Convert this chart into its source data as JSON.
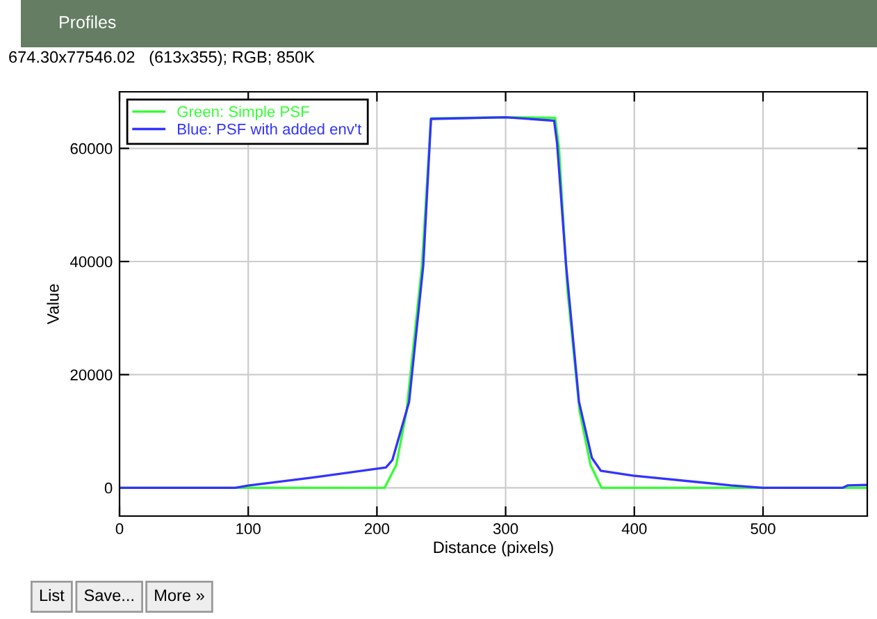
{
  "chart_data": {
    "type": "line",
    "title": "Profiles",
    "subtitle": "674.30x77546.02   (613x355); RGB; 850K",
    "xlabel": "Distance (pixels)",
    "ylabel": "Value",
    "xlim": [
      0,
      581
    ],
    "xticks": [
      0,
      100,
      200,
      300,
      400,
      500
    ],
    "ylim": [
      -5000,
      70000
    ],
    "yticks": [
      0,
      20000,
      40000,
      60000
    ],
    "grid": true,
    "legend": "top left",
    "marker": "none",
    "line_style": "solid",
    "annotations": [
      "List",
      "Save...",
      "More »"
    ],
    "series": [
      {
        "name": "Green: Simple PSF",
        "color": "#33ff33",
        "x": [
          0,
          206,
          215,
          223,
          235,
          242,
          300,
          338.5,
          341.5,
          348,
          357.5,
          366,
          374.5,
          581
        ],
        "values": [
          0,
          0,
          4000,
          13500,
          39300,
          65300,
          65500,
          65400,
          60000,
          35000,
          13500,
          4000,
          0,
          0
        ]
      },
      {
        "name": "Blue: PSF with added env't",
        "color": "#3333ff",
        "x": [
          0,
          90,
          100,
          150,
          207,
          212,
          225,
          236,
          242,
          300,
          337.7,
          340,
          347,
          357,
          367,
          374,
          399,
          475,
          500,
          562,
          566,
          581
        ],
        "values": [
          0,
          0,
          400,
          1800,
          3600,
          4900,
          15200,
          39300,
          65200,
          65500,
          64900,
          60900,
          39300,
          15200,
          5300,
          3000,
          2150,
          430,
          0,
          0,
          430,
          500
        ]
      }
    ]
  }
}
